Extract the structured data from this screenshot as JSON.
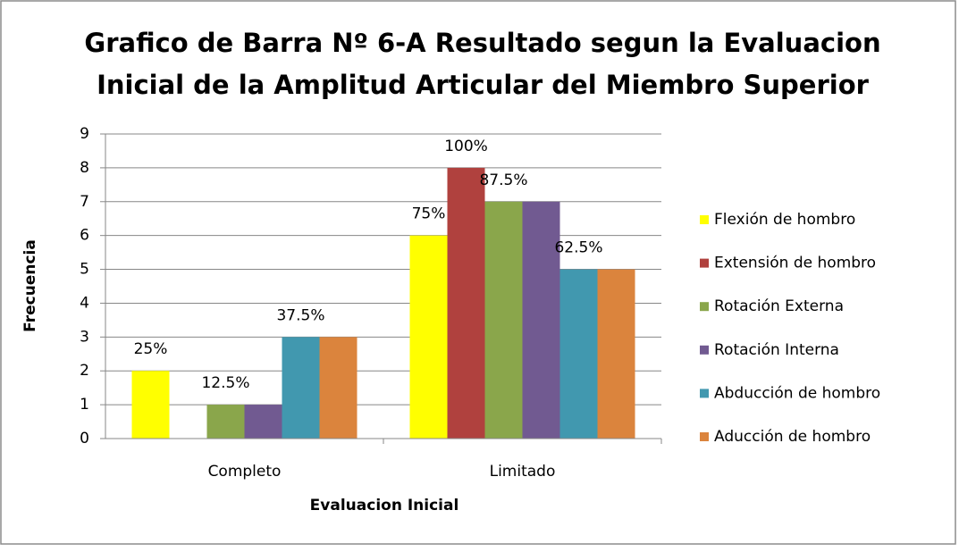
{
  "chart_data": {
    "type": "bar",
    "title": [
      "Grafico de Barra Nº 6-A Resultado segun la Evaluacion",
      "Inicial de la Amplitud Articular del Miembro Superior"
    ],
    "x_label": "Evaluacion Inicial",
    "y_label": "Frecuencia",
    "categories": [
      "Completo",
      "Limitado"
    ],
    "series": [
      {
        "name": "Flexión de hombro",
        "color": "#ffff00",
        "values": [
          2,
          6
        ],
        "value_labels": [
          "25%",
          "75%"
        ]
      },
      {
        "name": "Extensión de hombro",
        "color": "#b0413e",
        "values": [
          0,
          8
        ],
        "value_labels": [
          null,
          "100%"
        ]
      },
      {
        "name": "Rotación Externa",
        "color": "#8aa64b",
        "values": [
          1,
          7
        ],
        "value_labels": [
          "12.5%",
          "87.5%"
        ]
      },
      {
        "name": "Rotación Interna",
        "color": "#715a91",
        "values": [
          1,
          7
        ],
        "value_labels": [
          null,
          null
        ]
      },
      {
        "name": "Abducción de hombro",
        "color": "#4198af",
        "values": [
          3,
          5
        ],
        "value_labels": [
          "37.5%",
          "62.5%"
        ]
      },
      {
        "name": "Aducción de hombro",
        "color": "#db843d",
        "values": [
          3,
          5
        ],
        "value_labels": [
          null,
          null
        ]
      }
    ],
    "ylim": [
      0,
      9
    ],
    "yticks": [
      0,
      1,
      2,
      3,
      4,
      5,
      6,
      7,
      8,
      9
    ],
    "grid": true,
    "legend": "right"
  }
}
